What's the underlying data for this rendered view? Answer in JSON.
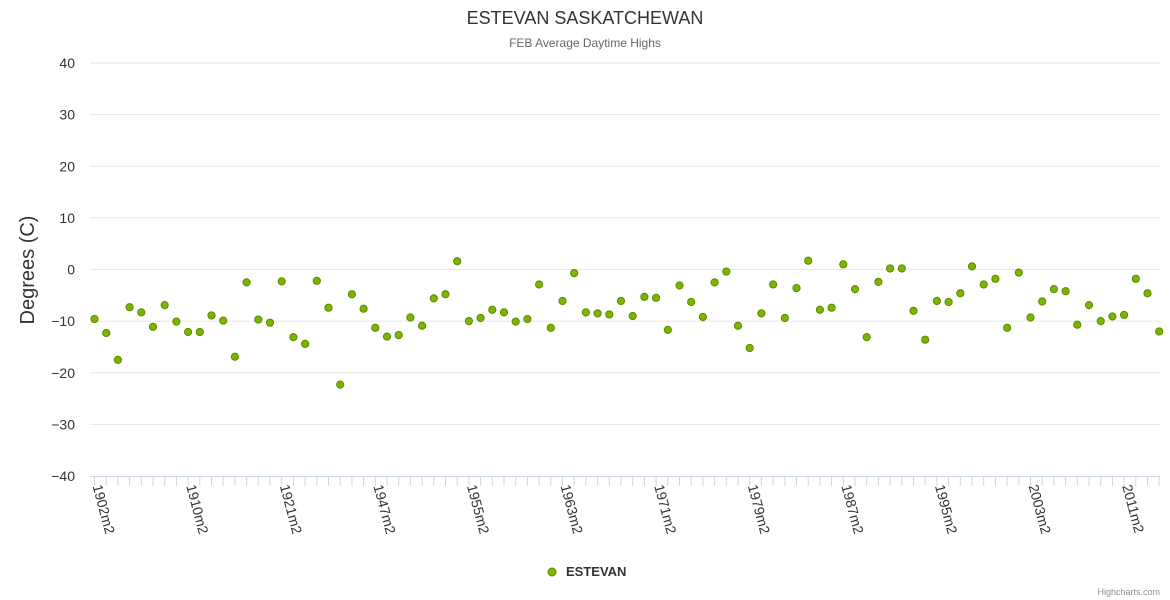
{
  "chart_data": {
    "type": "scatter",
    "title": "ESTEVAN SASKATCHEWAN",
    "subtitle": "FEB Average Daytime Highs",
    "ylabel": "Degrees (C)",
    "xlabel": "",
    "ylim": [
      -40,
      40
    ],
    "yticks": [
      40,
      30,
      20,
      10,
      0,
      -10,
      -20,
      -30,
      -40
    ],
    "xtick_labels": [
      "1902m2",
      "1910m2",
      "1921m2",
      "1947m2",
      "1955m2",
      "1963m2",
      "1971m2",
      "1979m2",
      "1987m2",
      "1995m2",
      "2003m2",
      "2011m2"
    ],
    "xtick_label_every": 8,
    "grid": true,
    "legend": "bottom-center",
    "series": [
      {
        "name": "ESTEVAN",
        "color": "#7cb500",
        "border": "#5a8a00",
        "values": [
          -9.6,
          -12.3,
          -17.5,
          -7.3,
          -8.3,
          -11.1,
          -6.9,
          -10.1,
          -12.1,
          -12.1,
          -8.9,
          -9.9,
          -16.9,
          -2.5,
          -9.7,
          -10.3,
          -2.3,
          -13.1,
          -14.4,
          -2.2,
          -7.4,
          -22.3,
          -4.8,
          -7.6,
          -11.3,
          -13.0,
          -12.7,
          -9.3,
          -10.9,
          -5.6,
          -4.8,
          1.6,
          -10.0,
          -9.4,
          -7.8,
          -8.3,
          -10.1,
          -9.6,
          -2.9,
          -11.3,
          -6.1,
          -0.7,
          -8.3,
          -8.5,
          -8.7,
          -6.1,
          -9.0,
          -5.3,
          -5.5,
          -11.7,
          -3.1,
          -6.3,
          -9.2,
          -2.5,
          -0.4,
          -10.9,
          -15.2,
          -8.5,
          -2.9,
          -9.4,
          -3.6,
          1.7,
          -7.8,
          -7.4,
          1.0,
          -3.8,
          -13.1,
          -2.4,
          0.2,
          0.2,
          -8.0,
          -13.6,
          -6.1,
          -6.3,
          -4.6,
          0.6,
          -2.9,
          -1.8,
          -11.3,
          -0.6,
          -9.3,
          -6.2,
          -3.8,
          -4.2,
          -10.7,
          -6.9,
          -10.0,
          -9.1,
          -8.8,
          -1.8,
          -4.6,
          -12.0
        ]
      }
    ]
  },
  "legend": {
    "label": "ESTEVAN"
  },
  "credits": {
    "text": "Highcharts.com"
  }
}
